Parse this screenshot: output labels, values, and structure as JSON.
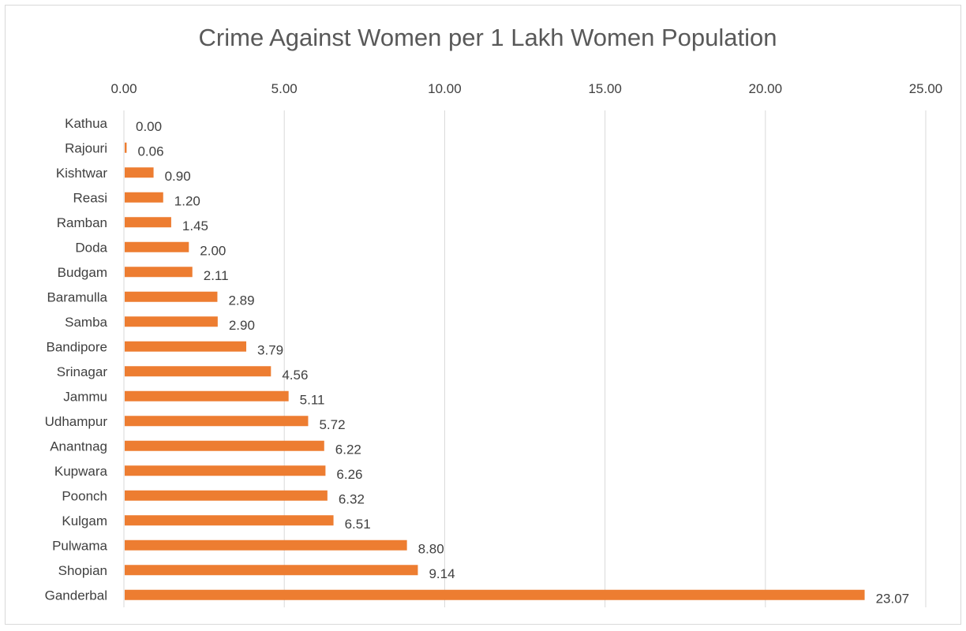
{
  "chart_data": {
    "type": "bar",
    "orientation": "horizontal",
    "title": "Crime Against Women per 1 Lakh Women Population",
    "xlabel": "",
    "ylabel": "",
    "xlim": [
      0,
      25
    ],
    "x_ticks": [
      "0.00",
      "5.00",
      "10.00",
      "15.00",
      "20.00",
      "25.00"
    ],
    "x_axis_position": "top",
    "grid": true,
    "legend": "none",
    "bar_color": "#ED7D31",
    "categories": [
      "Kathua",
      "Rajouri",
      "Kishtwar",
      "Reasi",
      "Ramban",
      "Doda",
      "Budgam",
      "Baramulla",
      "Samba",
      "Bandipore",
      "Srinagar",
      "Jammu",
      "Udhampur",
      "Anantnag",
      "Kupwara",
      "Poonch",
      "Kulgam",
      "Pulwama",
      "Shopian",
      "Ganderbal"
    ],
    "values": [
      0.0,
      0.06,
      0.9,
      1.2,
      1.45,
      2.0,
      2.11,
      2.89,
      2.9,
      3.79,
      4.56,
      5.11,
      5.72,
      6.22,
      6.26,
      6.32,
      6.51,
      8.8,
      9.14,
      23.07
    ],
    "data_labels": [
      "0.00",
      "0.06",
      "0.90",
      "1.20",
      "1.45",
      "2.00",
      "2.11",
      "2.89",
      "2.90",
      "3.79",
      "4.56",
      "5.11",
      "5.72",
      "6.22",
      "6.26",
      "6.32",
      "6.51",
      "8.80",
      "9.14",
      "23.07"
    ]
  }
}
